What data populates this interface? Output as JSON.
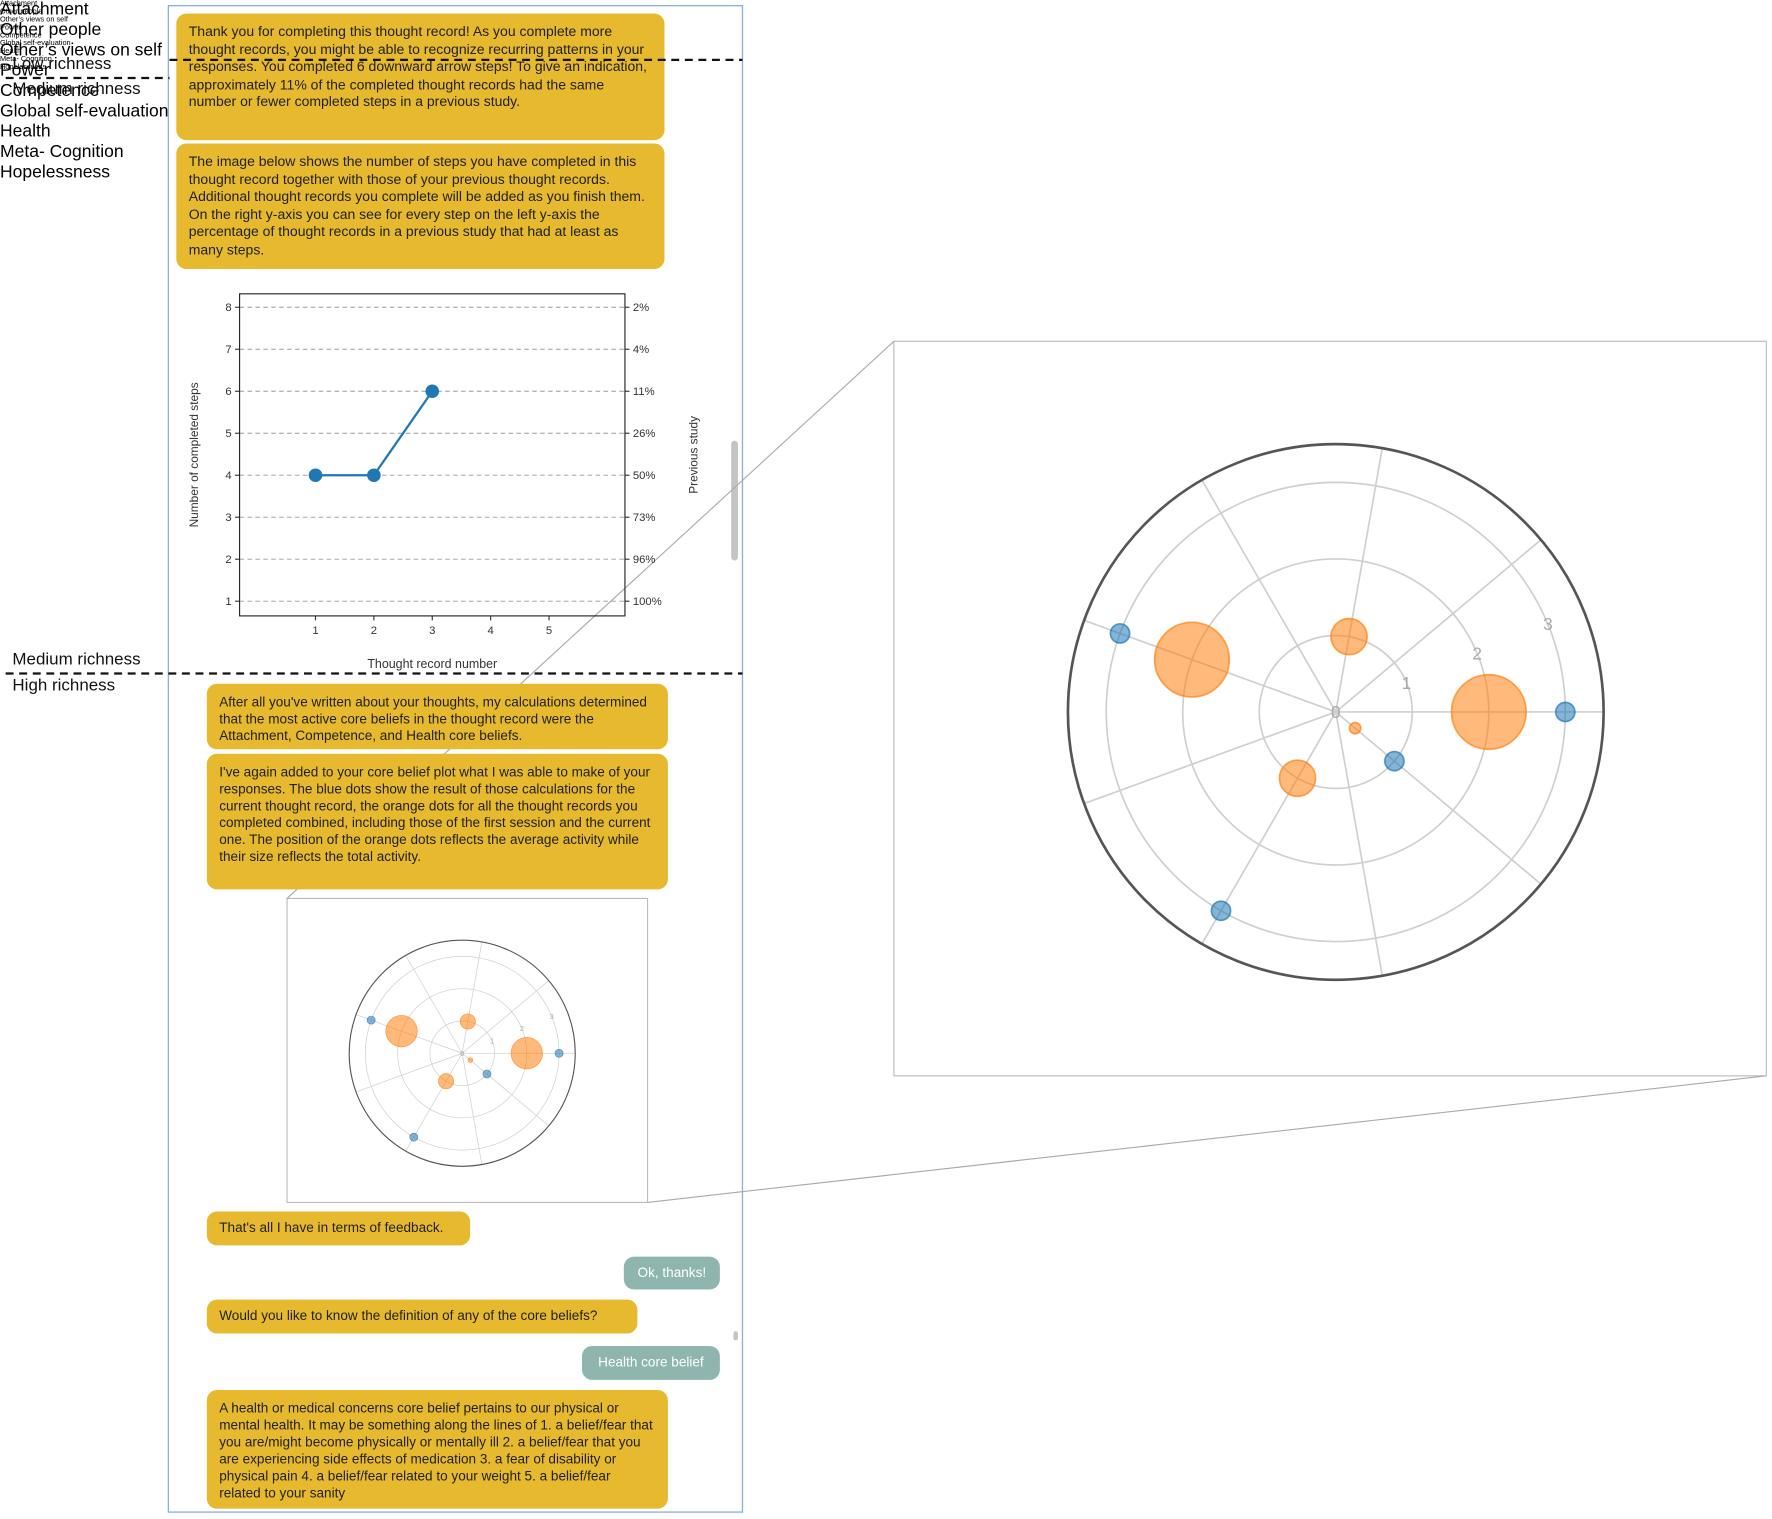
{
  "annotations": [
    "Low richness",
    "Medium richness",
    "Medium richness",
    "High richness"
  ],
  "messages": [
    {
      "text": "Thank you for completing this thought record! As you complete more thought records, you might be able to recognize recurring patterns in your responses. You completed 6 downward arrow steps! To give an indication, approximately 11% of the completed thought records had the same number or fewer completed steps in a previous study."
    },
    {
      "text": "The image below shows the number of steps you have completed in this thought record together with those of your previous thought records. Additional thought records you complete will be added as you finish them. On the right y-axis you can see for every step on the left y-axis the percentage of thought records in a previous study that had at least as many steps."
    },
    {
      "text": "After all you've written about your thoughts, my calculations determined that the most active core beliefs in the thought record were the Attachment, Competence, and Health core beliefs."
    },
    {
      "text": "I've again added to your core belief plot what I was able to make of your responses. The blue dots show the result of those calculations for the current thought record, the orange dots for all the thought records you completed combined, including those of the first session and the current one. The position of the orange dots reflects the average activity while their size reflects the total activity."
    },
    {
      "text": "That's all I have in terms of feedback."
    },
    {
      "text": "Ok, thanks!"
    },
    {
      "text": "Would you like to know the definition of any of the core beliefs?"
    },
    {
      "text": "Health core belief"
    },
    {
      "text": "A health or medical concerns core belief pertains to our physical or mental health. It may be something along the lines of 1. a belief/fear that you are/might become physically or mentally ill 2. a belief/fear that you are experiencing side effects of medication 3. a fear of disability or physical pain 4. a belief/fear related to your weight 5. a belief/fear related to your sanity"
    }
  ],
  "chart_data": [
    {
      "type": "line",
      "x_label": "Thought record number",
      "y_label": "Number of completed steps",
      "y2_label": "Previous study",
      "x": [
        1,
        2,
        3
      ],
      "series": [
        {
          "color": "#1f77b4",
          "values": [
            4,
            4,
            6
          ]
        }
      ],
      "xlim": [
        -0.3,
        6.3
      ],
      "xticks": [
        1,
        2,
        3,
        4,
        5
      ],
      "ylim": [
        0.65,
        8.32
      ],
      "yticks": [
        1,
        2,
        3,
        4,
        5,
        6,
        7,
        8
      ],
      "y2lim": [
        0.65,
        8.32
      ],
      "y2ticks": [
        {
          "value": 1,
          "label": "100%"
        },
        {
          "value": 2,
          "label": "96%"
        },
        {
          "value": 3,
          "label": "73%"
        },
        {
          "value": 4,
          "label": "50%"
        },
        {
          "value": 5,
          "label": "26%"
        },
        {
          "value": 6,
          "label": "11%"
        },
        {
          "value": 7,
          "label": "4%"
        },
        {
          "value": 8,
          "label": "2%"
        }
      ],
      "grid": true
    },
    {
      "type": "polar-scatter",
      "categories": [
        "Attachment",
        "Other people",
        "Other’s views\non self",
        "Power",
        "Competence",
        "Global\nself-evaluation",
        "Health",
        "Meta-\nCognition",
        "Hopelessness"
      ],
      "rlim": [
        0,
        3.5
      ],
      "rticks": [
        0,
        1,
        2,
        3
      ],
      "series": [
        {
          "color": "#1f77b4",
          "values": [
            3,
            null,
            null,
            null,
            3,
            null,
            3,
            null,
            1
          ]
        },
        {
          "color": "#ff7f0e",
          "values": [
            2,
            null,
            1,
            null,
            2,
            null,
            1,
            null,
            0.33
          ],
          "sizes": [
            1089,
            null,
            256,
            null,
            1089,
            null,
            256,
            null,
            25
          ]
        }
      ]
    }
  ]
}
